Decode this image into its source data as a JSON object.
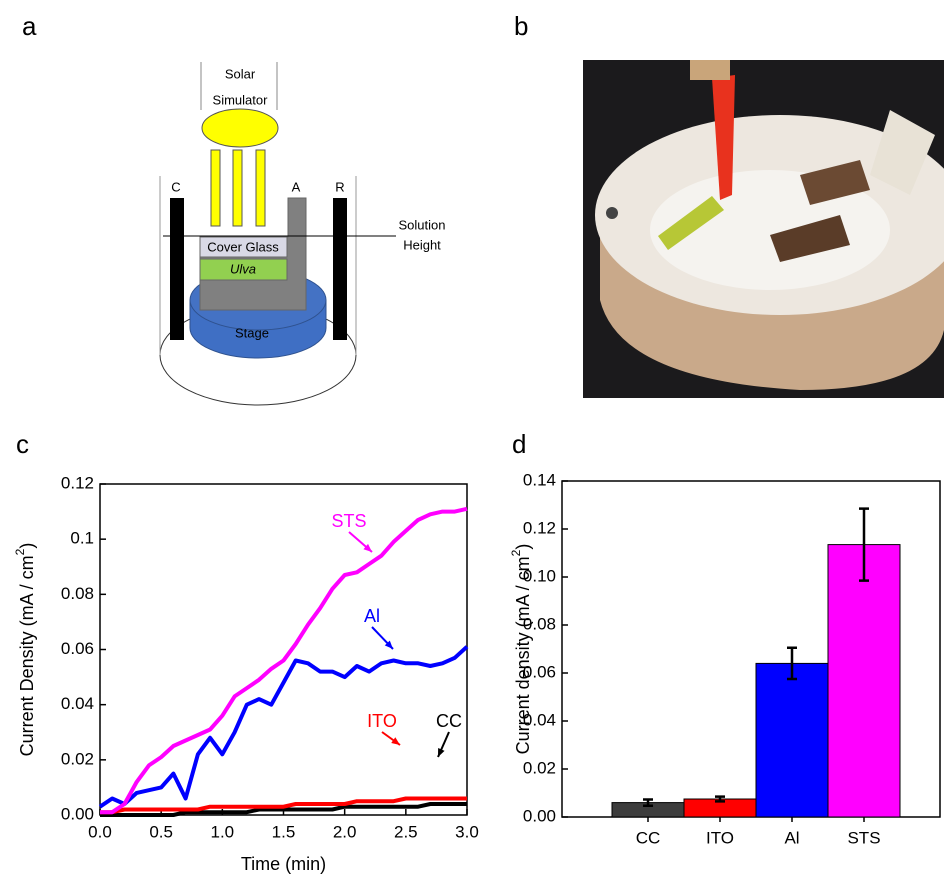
{
  "panels": [
    "a",
    "b",
    "c",
    "d"
  ],
  "diagram": {
    "source": [
      "Solar",
      "Simulator"
    ],
    "electrodes": [
      "C",
      "A",
      "R"
    ],
    "solution": [
      "Solution",
      "Height"
    ],
    "cover_glass": "Cover Glass",
    "ulva": "Ulva",
    "stage": "Stage"
  },
  "chart_data": [
    {
      "type": "line",
      "xlabel": "Time (min)",
      "ylabel": {
        "text": "Current Density (mA / cm",
        "sup": "2",
        "end": ")"
      },
      "x": [
        0,
        0.1,
        0.2,
        0.3,
        0.4,
        0.5,
        0.6,
        0.7,
        0.8,
        0.9,
        1.0,
        1.1,
        1.2,
        1.3,
        1.4,
        1.5,
        1.6,
        1.7,
        1.8,
        1.9,
        2.0,
        2.1,
        2.2,
        2.3,
        2.4,
        2.5,
        2.6,
        2.7,
        2.8,
        2.9,
        3.0
      ],
      "series": [
        {
          "name": "STS",
          "color": "#ff00ff",
          "values": [
            0.001,
            0.001,
            0.004,
            0.012,
            0.018,
            0.021,
            0.025,
            0.027,
            0.029,
            0.031,
            0.036,
            0.043,
            0.046,
            0.049,
            0.053,
            0.056,
            0.062,
            0.069,
            0.075,
            0.082,
            0.087,
            0.088,
            0.091,
            0.094,
            0.099,
            0.103,
            0.107,
            0.109,
            0.11,
            0.11,
            0.111
          ]
        },
        {
          "name": "Al",
          "color": "#0000ff",
          "values": [
            0.003,
            0.006,
            0.004,
            0.008,
            0.009,
            0.01,
            0.015,
            0.006,
            0.022,
            0.028,
            0.022,
            0.03,
            0.04,
            0.042,
            0.04,
            0.048,
            0.056,
            0.055,
            0.052,
            0.052,
            0.05,
            0.054,
            0.052,
            0.055,
            0.056,
            0.055,
            0.055,
            0.054,
            0.055,
            0.057,
            0.061
          ]
        },
        {
          "name": "ITO",
          "color": "#ff0000",
          "values": [
            0.001,
            0.001,
            0.002,
            0.002,
            0.002,
            0.002,
            0.002,
            0.002,
            0.002,
            0.003,
            0.003,
            0.003,
            0.003,
            0.003,
            0.003,
            0.003,
            0.004,
            0.004,
            0.004,
            0.004,
            0.004,
            0.005,
            0.005,
            0.005,
            0.005,
            0.006,
            0.006,
            0.006,
            0.006,
            0.006,
            0.006
          ]
        },
        {
          "name": "CC",
          "color": "#000000",
          "values": [
            0,
            0,
            0,
            0,
            0,
            0,
            0,
            0.001,
            0.001,
            0.001,
            0.001,
            0.001,
            0.001,
            0.002,
            0.002,
            0.002,
            0.002,
            0.002,
            0.002,
            0.002,
            0.003,
            0.003,
            0.003,
            0.003,
            0.003,
            0.003,
            0.003,
            0.004,
            0.004,
            0.004,
            0.004
          ]
        }
      ],
      "xlim": [
        0,
        3
      ],
      "ylim": [
        0,
        0.12
      ],
      "xticks": [
        {
          "value": 0,
          "label": "0.0"
        },
        0.5,
        {
          "value": 1,
          "label": "1.0"
        },
        1.5,
        {
          "value": 2,
          "label": "2.0"
        },
        2.5,
        {
          "value": 3,
          "label": "3.0"
        }
      ],
      "yticks": [
        {
          "value": 0,
          "label": "0.00"
        },
        0.02,
        0.04,
        0.06,
        0.08,
        0.1,
        0.12
      ]
    },
    {
      "type": "bar",
      "ylabel": {
        "text": "Current density (mA / cm",
        "sup": "2",
        "end": ")"
      },
      "categories": [
        "CC",
        "ITO",
        "Al",
        "STS"
      ],
      "values": [
        0.006,
        0.0075,
        0.064,
        0.1135
      ],
      "errors": [
        0.0013,
        0.001,
        0.0065,
        0.015
      ],
      "colors": [
        "#3d3d3d",
        "#ff0000",
        "#0000ff",
        "#ff00ff"
      ],
      "ylim": [
        0,
        0.14
      ],
      "yticks": [
        {
          "value": 0,
          "label": "0.00"
        },
        0.02,
        0.04,
        0.06,
        0.08,
        {
          "value": 0.1,
          "label": "0.10"
        },
        0.12,
        0.14
      ]
    }
  ]
}
